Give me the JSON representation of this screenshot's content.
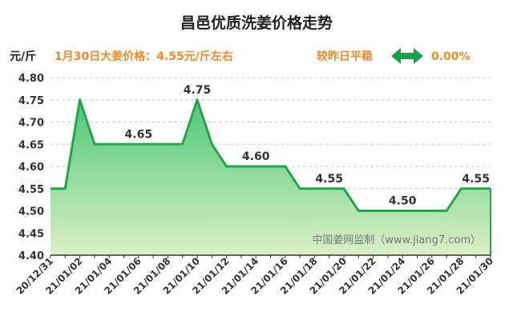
{
  "chart_data": {
    "type": "area",
    "title": "昌邑优质洗姜价格走势",
    "ylabel": "元/斤",
    "info_text": "1月30日大姜价格：4.55元/斤左右",
    "change_label": "较昨日平稳",
    "change_value": "0.00%",
    "watermark": "中国姜网监制（www.jiang7.com）",
    "ylim": [
      4.4,
      4.8
    ],
    "yticks": [
      "4.40",
      "4.45",
      "4.50",
      "4.55",
      "4.60",
      "4.65",
      "4.70",
      "4.75",
      "4.80"
    ],
    "xticks": [
      "20/12/31",
      "21/01/02",
      "21/01/04",
      "21/01/06",
      "21/01/08",
      "21/01/10",
      "21/01/12",
      "21/01/14",
      "21/01/16",
      "21/01/18",
      "21/01/20",
      "21/01/22",
      "21/01/24",
      "21/01/26",
      "21/01/28",
      "21/01/30"
    ],
    "series": [
      {
        "x": [
          "20/12/31",
          "21/01/01",
          "21/01/02",
          "21/01/03",
          "21/01/04",
          "21/01/05",
          "21/01/06",
          "21/01/07",
          "21/01/08",
          "21/01/09",
          "21/01/10",
          "21/01/11",
          "21/01/12",
          "21/01/13",
          "21/01/14",
          "21/01/15",
          "21/01/16",
          "21/01/17",
          "21/01/18",
          "21/01/19",
          "21/01/20",
          "21/01/21",
          "21/01/22",
          "21/01/23",
          "21/01/24",
          "21/01/25",
          "21/01/26",
          "21/01/27",
          "21/01/28",
          "21/01/29",
          "21/01/30"
        ],
        "values": [
          4.55,
          4.55,
          4.75,
          4.65,
          4.65,
          4.65,
          4.65,
          4.65,
          4.65,
          4.65,
          4.75,
          4.65,
          4.6,
          4.6,
          4.6,
          4.6,
          4.6,
          4.55,
          4.55,
          4.55,
          4.55,
          4.5,
          4.5,
          4.5,
          4.5,
          4.5,
          4.5,
          4.5,
          4.55,
          4.55,
          4.55
        ]
      }
    ],
    "data_labels": [
      {
        "x": "21/01/10",
        "y": 4.75,
        "text": "4.75"
      },
      {
        "x": "21/01/06",
        "y": 4.65,
        "text": "4.65"
      },
      {
        "x": "21/01/14",
        "y": 4.6,
        "text": "4.60"
      },
      {
        "x": "21/01/19",
        "y": 4.55,
        "text": "4.55"
      },
      {
        "x": "21/01/24",
        "y": 4.5,
        "text": "4.50"
      },
      {
        "x": "21/01/29",
        "y": 4.55,
        "text": "4.55"
      }
    ],
    "grid": true,
    "colors": {
      "line": "#1ea84a",
      "fill_top": "#4cc878",
      "fill_bottom": "#dcefc6",
      "info": "#ee8a2a",
      "arrow": "#1aa04a"
    }
  }
}
